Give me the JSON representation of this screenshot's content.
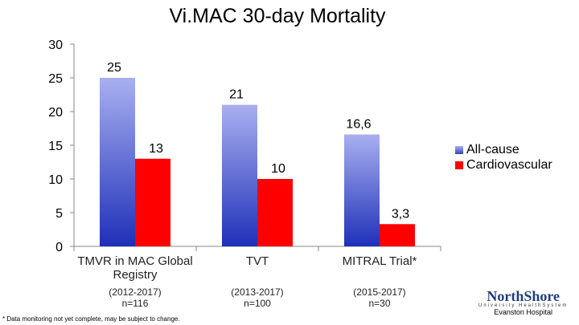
{
  "chart_data": {
    "type": "bar",
    "title": "Vi.MAC 30-day Mortality",
    "categories": [
      {
        "name": "TMVR in MAC Global Registry",
        "period": "(2012-2017)",
        "n": "n=116"
      },
      {
        "name": "TVT",
        "period": "(2013-2017)",
        "n": "n=100"
      },
      {
        "name": "MITRAL Trial*",
        "period": "(2015-2017)",
        "n": "n=30"
      }
    ],
    "series": [
      {
        "name": "All-cause",
        "values": [
          25,
          21,
          16.6
        ],
        "labels": [
          "25",
          "21",
          "16,6"
        ],
        "color": "#3040c0",
        "color_top": "#a8b0f0"
      },
      {
        "name": "Cardiovascular",
        "values": [
          13,
          10,
          3.3
        ],
        "labels": [
          "13",
          "10",
          "3,3"
        ],
        "color": "#ff0000"
      }
    ],
    "ylim": [
      0,
      30
    ],
    "yticks": [
      "0",
      "5",
      "10",
      "15",
      "20",
      "25",
      "30"
    ],
    "grid": false,
    "legend": "right"
  },
  "footnote": "* Data monitoring not yet complete, may be subject to change.",
  "logo": {
    "brand": "NorthShore",
    "sub": "University HealthSystem",
    "site": "Evanston Hospital"
  }
}
